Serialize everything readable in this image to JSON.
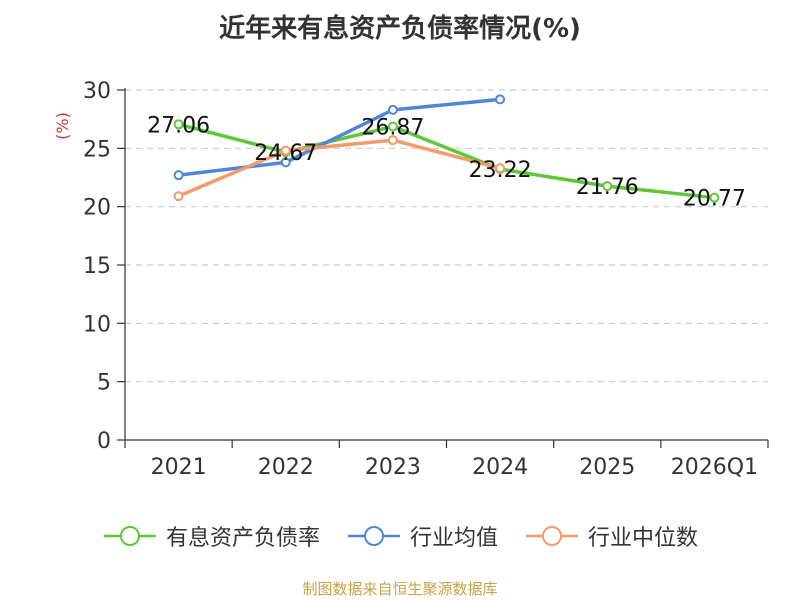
{
  "title": "近年来有息资产负债率情况(%)",
  "source": "制图数据来自恒生聚源数据库",
  "chart_data": {
    "type": "line",
    "categories": [
      "2021",
      "2022",
      "2023",
      "2024",
      "2025",
      "2026Q1"
    ],
    "ylabel": "(%)",
    "ylim": [
      0,
      30
    ],
    "yticks": [
      0,
      5,
      10,
      15,
      20,
      25,
      30
    ],
    "grid": true,
    "legend_position": "bottom",
    "series": [
      {
        "name": "有息资产负债率",
        "color": "#5ec637",
        "values": [
          27.06,
          24.67,
          26.87,
          23.22,
          21.76,
          20.77
        ],
        "labels": [
          "27.06",
          "24.67",
          "26.87",
          "23.22",
          "21.76",
          "20.77"
        ]
      },
      {
        "name": "行业均值",
        "color": "#4f86d9",
        "values": [
          22.7,
          23.8,
          28.3,
          29.2,
          null,
          null
        ]
      },
      {
        "name": "行业中位数",
        "color": "#f59a68",
        "values": [
          20.9,
          24.8,
          25.7,
          23.3,
          null,
          null
        ]
      }
    ]
  }
}
